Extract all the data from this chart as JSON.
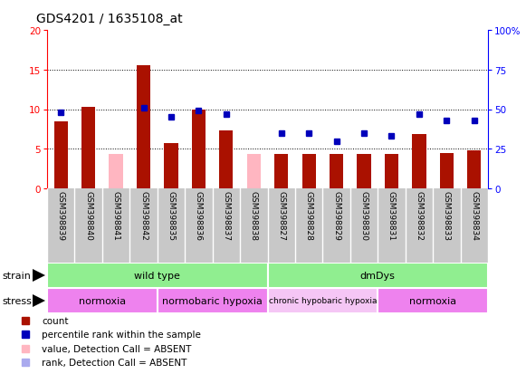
{
  "title": "GDS4201 / 1635108_at",
  "samples": [
    "GSM398839",
    "GSM398840",
    "GSM398841",
    "GSM398842",
    "GSM398835",
    "GSM398836",
    "GSM398837",
    "GSM398838",
    "GSM398827",
    "GSM398828",
    "GSM398829",
    "GSM398830",
    "GSM398831",
    "GSM398832",
    "GSM398833",
    "GSM398834"
  ],
  "red_values": [
    8.5,
    10.3,
    4.4,
    15.5,
    5.7,
    9.9,
    7.3,
    4.4,
    4.3,
    4.3,
    4.3,
    4.3,
    4.3,
    6.9,
    4.5,
    4.8
  ],
  "red_absent": [
    false,
    false,
    true,
    false,
    false,
    false,
    false,
    true,
    false,
    false,
    false,
    false,
    false,
    false,
    false,
    false
  ],
  "blue_values": [
    48,
    null,
    null,
    51,
    45,
    49,
    47,
    null,
    35,
    35,
    30,
    35,
    33,
    47,
    43,
    43
  ],
  "blue_absent": [
    false,
    false,
    false,
    false,
    false,
    false,
    false,
    true,
    false,
    false,
    false,
    false,
    false,
    false,
    false,
    false
  ],
  "ylim_left": [
    0,
    20
  ],
  "ylim_right": [
    0,
    100
  ],
  "yticks_left": [
    0,
    5,
    10,
    15,
    20
  ],
  "yticks_right": [
    0,
    25,
    50,
    75,
    100
  ],
  "ytick_labels_right": [
    "0",
    "25",
    "50",
    "75",
    "100%"
  ],
  "hgrid_lines": [
    5,
    10,
    15
  ],
  "strain_groups": [
    {
      "label": "wild type",
      "start": 0,
      "end": 8,
      "color": "#90EE90"
    },
    {
      "label": "dmDys",
      "start": 8,
      "end": 16,
      "color": "#90EE90"
    }
  ],
  "stress_groups": [
    {
      "label": "normoxia",
      "start": 0,
      "end": 4,
      "color": "#EE82EE"
    },
    {
      "label": "normobaric hypoxia",
      "start": 4,
      "end": 8,
      "color": "#EE82EE"
    },
    {
      "label": "chronic hypobaric hypoxia",
      "start": 8,
      "end": 12,
      "color": "#F5C6F5"
    },
    {
      "label": "normoxia",
      "start": 12,
      "end": 16,
      "color": "#EE82EE"
    }
  ],
  "red_color": "#AA1100",
  "red_absent_color": "#FFB6C1",
  "blue_color": "#0000BB",
  "blue_absent_color": "#AAAAEE",
  "bar_width": 0.5,
  "tick_label_area_color": "#C8C8C8",
  "title_font": 10,
  "label_font": 6.5,
  "annot_font": 8,
  "legend_font": 7.5
}
